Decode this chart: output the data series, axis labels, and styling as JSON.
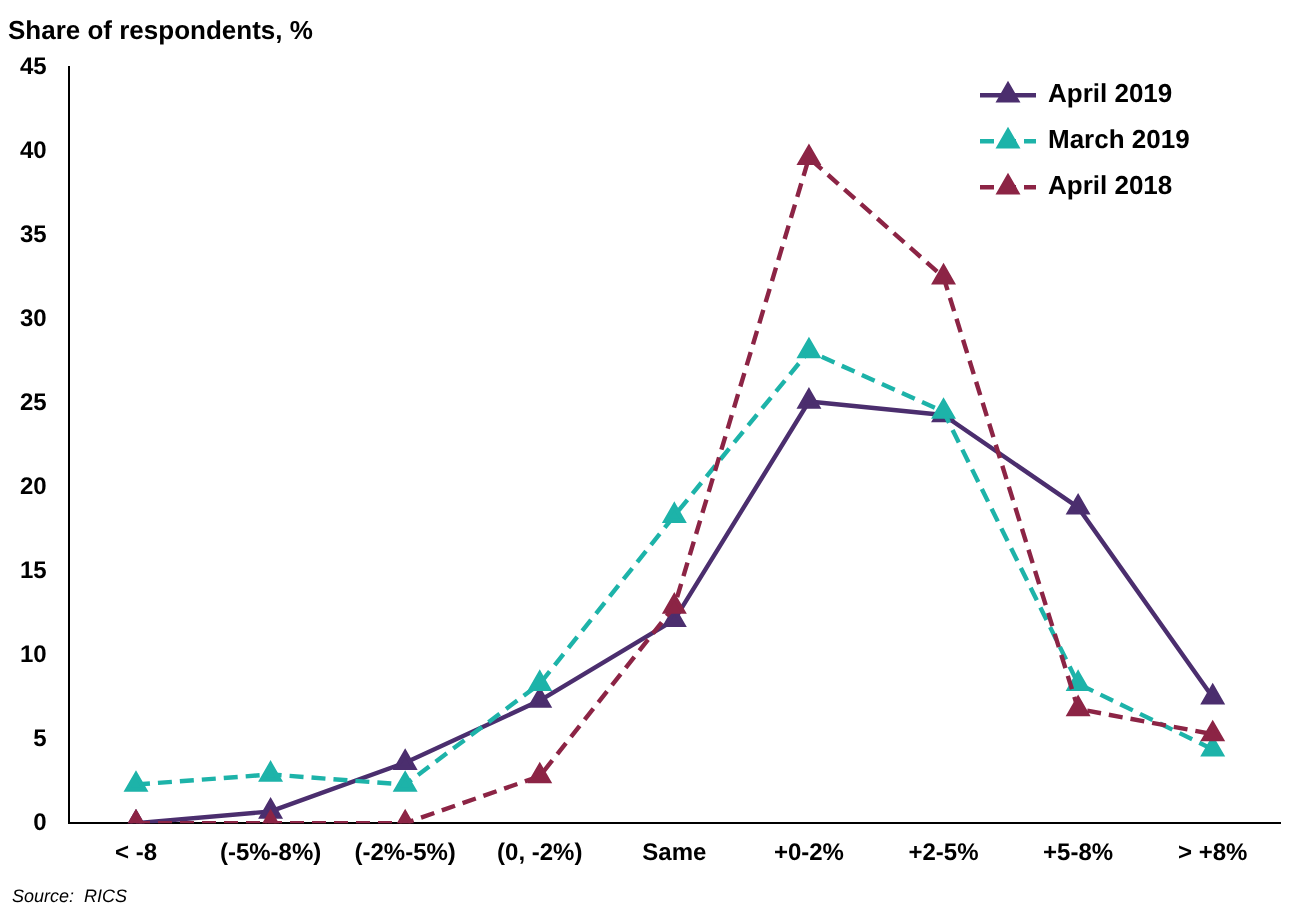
{
  "chart_data": {
    "type": "line",
    "title": "Share of respondents, %",
    "categories": [
      "< -8",
      "(-5%-8%)",
      "(-2%-5%)",
      "(0, -2%)",
      "Same",
      "+0-2%",
      "+2-5%",
      "+5-8%",
      "> +8%"
    ],
    "series": [
      {
        "name": "April 2019",
        "color": "#4b2e6e",
        "line_style": "solid",
        "values": [
          0,
          0.7,
          3.6,
          7.3,
          12.1,
          25.1,
          24.3,
          18.8,
          7.5
        ]
      },
      {
        "name": "March 2019",
        "color": "#1db3a9",
        "line_style": "dashed",
        "values": [
          2.3,
          2.9,
          2.3,
          8.3,
          18.3,
          28.1,
          24.5,
          8.3,
          4.4
        ]
      },
      {
        "name": "April 2018",
        "color": "#8c2445",
        "line_style": "dashed",
        "values": [
          0,
          0,
          0,
          2.8,
          12.9,
          39.6,
          32.5,
          6.8,
          5.3
        ]
      }
    ],
    "ylim": [
      0,
      45
    ],
    "yticks": [
      0,
      5,
      10,
      15,
      20,
      25,
      30,
      35,
      40,
      45
    ],
    "grid": false,
    "legend": "top right",
    "marker": "triangle",
    "annotations": [
      "Source:  RICS"
    ]
  }
}
